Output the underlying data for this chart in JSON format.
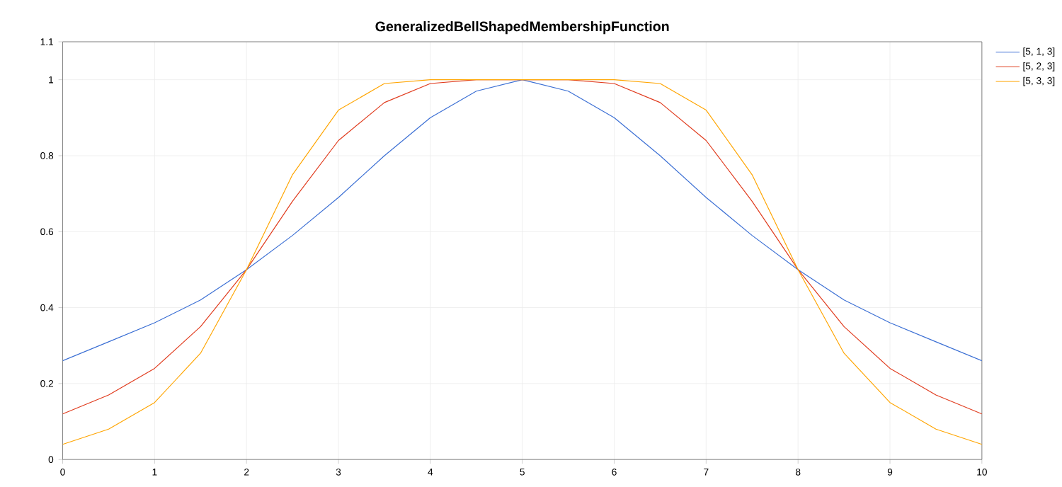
{
  "chart_data": {
    "type": "line",
    "title": "GeneralizedBellShapedMembershipFunction",
    "x": [
      0,
      0.5,
      1,
      1.5,
      2,
      2.5,
      3,
      3.5,
      4,
      4.5,
      5,
      5.5,
      6,
      6.5,
      7,
      7.5,
      8,
      8.5,
      9,
      9.5,
      10
    ],
    "series": [
      {
        "name": "[5, 1, 3]",
        "color": "#3b6fd4",
        "values": [
          0.26,
          0.31,
          0.36,
          0.42,
          0.5,
          0.59,
          0.69,
          0.8,
          0.9,
          0.97,
          1,
          0.97,
          0.9,
          0.8,
          0.69,
          0.59,
          0.5,
          0.42,
          0.36,
          0.31,
          0.26
        ]
      },
      {
        "name": "[5, 2, 3]",
        "color": "#e03a1c",
        "values": [
          0.12,
          0.17,
          0.24,
          0.35,
          0.5,
          0.68,
          0.84,
          0.94,
          0.99,
          1,
          1,
          1,
          0.99,
          0.94,
          0.84,
          0.68,
          0.5,
          0.35,
          0.24,
          0.17,
          0.12
        ]
      },
      {
        "name": "[5, 3, 3]",
        "color": "#ffa500",
        "values": [
          0.04,
          0.08,
          0.15,
          0.28,
          0.5,
          0.75,
          0.92,
          0.99,
          1,
          1,
          1,
          1,
          1,
          0.99,
          0.92,
          0.75,
          0.5,
          0.28,
          0.15,
          0.08,
          0.04
        ]
      }
    ],
    "xlim": [
      0,
      10
    ],
    "ylim": [
      0,
      1.1
    ],
    "xticks": [
      0,
      1,
      2,
      3,
      4,
      5,
      6,
      7,
      8,
      9,
      10
    ],
    "yticks": [
      0,
      0.2,
      0.4,
      0.6,
      0.8,
      1,
      1.1
    ],
    "grid": true,
    "legend": "top right",
    "marker": "none",
    "line_style": "solid"
  }
}
